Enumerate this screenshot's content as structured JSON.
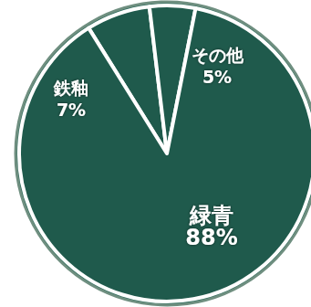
{
  "chart_data": {
    "type": "pie",
    "categories": [
      "鉄釉",
      "その他",
      "緑青"
    ],
    "values": [
      7,
      5,
      88
    ],
    "value_labels": [
      "7%",
      "5%",
      "88%"
    ],
    "colors": [
      "#1f5a4c",
      "#1f5a4c",
      "#1f5a4c"
    ],
    "data_labels": true
  }
}
